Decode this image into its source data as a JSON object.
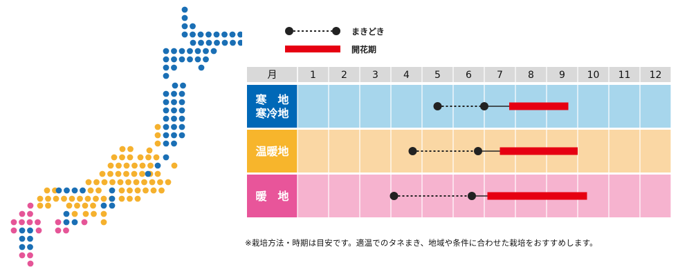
{
  "legend": {
    "sowing_label": "まきどき",
    "flowering_label": "開花期"
  },
  "chart_data": {
    "type": "gantt",
    "header_label": "月",
    "months": [
      "1",
      "2",
      "3",
      "4",
      "5",
      "6",
      "7",
      "8",
      "9",
      "10",
      "11",
      "12"
    ],
    "rows": [
      {
        "region": "寒　地\n寒冷地",
        "color": "#a7d6ec",
        "label_color": "#0068b7",
        "sowing": [
          5.0,
          6.5
        ],
        "flowering": [
          7.3,
          9.2
        ]
      },
      {
        "region": "温暖地",
        "color": "#fad7a4",
        "label_color": "#f7b52c",
        "sowing": [
          4.2,
          6.3
        ],
        "flowering": [
          7.0,
          9.5
        ]
      },
      {
        "region": "暖　地",
        "color": "#f6b3cf",
        "label_color": "#e8559a",
        "sowing": [
          3.6,
          6.1
        ],
        "flowering": [
          6.6,
          9.8
        ]
      }
    ],
    "colors": {
      "sowing_line": "#222222",
      "flowering_bar": "#e60012"
    }
  },
  "map": {
    "colors": {
      "cold": "#1a6fb5",
      "warm": "#f5b12e",
      "hot": "#e55597"
    }
  },
  "note": "※栽培方法・時期は目安です。適温でのタネまき、地域や条件に合わせた栽培をおすすめします。"
}
